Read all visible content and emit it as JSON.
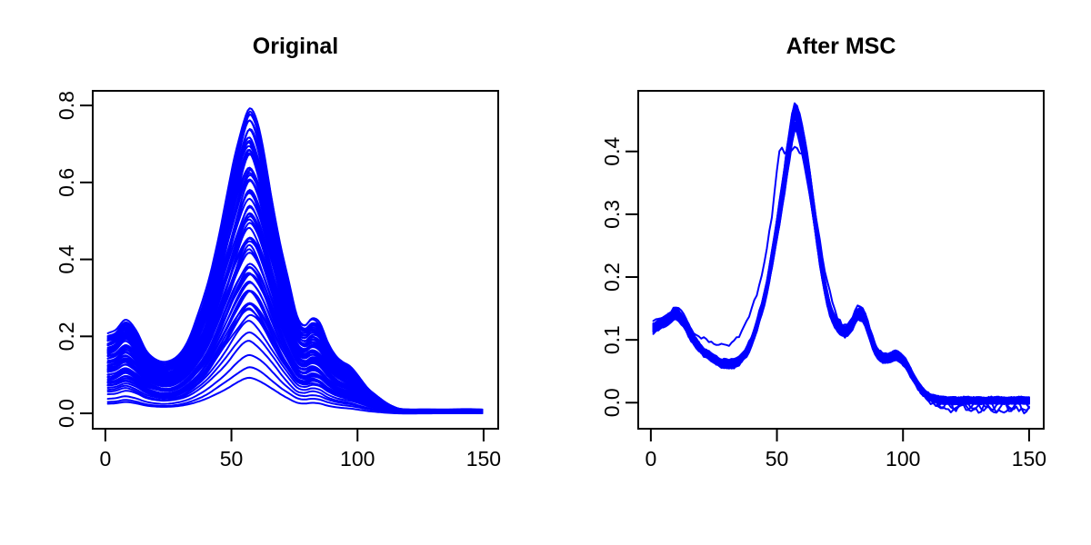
{
  "figure": {
    "background": "#ffffff",
    "axis_color": "#000000",
    "text_color": "#000000",
    "curve_color": "#0000ff"
  },
  "chart_data": [
    {
      "id": "original",
      "type": "line",
      "title": "Original",
      "xlabel": "",
      "ylabel": "",
      "line_color": "#0000ff",
      "grid": false,
      "legend": false,
      "x_ticks": [
        0,
        50,
        100,
        150
      ],
      "y_ticks": [
        0.0,
        0.2,
        0.4,
        0.6,
        0.8
      ],
      "y_tick_labels": [
        "0.0",
        "0.2",
        "0.4",
        "0.6",
        "0.8"
      ],
      "xlim": [
        -5.0,
        155.8
      ],
      "ylim": [
        -0.04,
        0.838
      ],
      "n_curves": 67,
      "description": "Ensemble of raw spectra with varying amplitude; small peak near x=8, main peak near x=57 (max 0.795), secondary bump near x=82, shoulder near x=94, tail near 0.01 beyond x=115",
      "base_curve": {
        "x": [
          1,
          4,
          8,
          12,
          16,
          20,
          24,
          28,
          32,
          36,
          40,
          44,
          48,
          52,
          55,
          57,
          59,
          62,
          66,
          70,
          73,
          76,
          79,
          82,
          85,
          88,
          91,
          94,
          97,
          100,
          104,
          108,
          112,
          116,
          120,
          128,
          136,
          144,
          150
        ],
        "y": [
          0.205,
          0.215,
          0.245,
          0.215,
          0.165,
          0.142,
          0.133,
          0.145,
          0.18,
          0.24,
          0.32,
          0.43,
          0.55,
          0.68,
          0.765,
          0.795,
          0.775,
          0.7,
          0.56,
          0.42,
          0.33,
          0.25,
          0.228,
          0.244,
          0.23,
          0.185,
          0.153,
          0.133,
          0.12,
          0.099,
          0.066,
          0.043,
          0.024,
          0.012,
          0.009,
          0.009,
          0.009,
          0.01,
          0.009
        ]
      },
      "ensemble": {
        "mode": "scaled",
        "n_scaled": 62,
        "scale_range": [
          0.31,
          1.0
        ],
        "low_scales": [
          0.115,
          0.15,
          0.19,
          0.235,
          0.27
        ],
        "scale_jitter": 0.012,
        "rel_noise": [
          0.012,
          0.009
        ],
        "abs_noise": 0.0015,
        "seed": 1234
      }
    },
    {
      "id": "after-msc",
      "type": "line",
      "title": "After MSC",
      "xlabel": "",
      "ylabel": "",
      "line_color": "#0000ff",
      "grid": false,
      "legend": false,
      "x_ticks": [
        0,
        50,
        100,
        150
      ],
      "y_ticks": [
        0.0,
        0.1,
        0.2,
        0.3,
        0.4
      ],
      "y_tick_labels": [
        "0.0",
        "0.1",
        "0.2",
        "0.3",
        "0.4"
      ],
      "xlim": [
        -5.0,
        155.8
      ],
      "ylim": [
        -0.0415,
        0.4965
      ],
      "n_curves": 53,
      "description": "Same spectra after multiplicative scatter correction; curves collapse onto one shape: start ~0.12, bump 0.148 near x=10, dip 0.063 near x=31, main peak 0.47 at x=57, bump 0.146 near x=82, shoulder ~0.078 near x=97, tail ~0 with a few noisy curves dipping below zero",
      "base_curve": {
        "x": [
          1,
          4,
          7,
          10,
          13,
          16,
          19,
          23,
          27,
          31,
          34,
          37,
          40,
          43,
          46,
          49,
          52,
          55,
          57,
          59,
          62,
          65,
          68,
          71,
          74,
          77,
          80,
          82,
          85,
          88,
          91,
          94,
          97,
          100,
          103,
          106,
          109,
          112,
          116,
          121,
          126,
          131,
          136,
          141,
          146,
          150
        ],
        "y": [
          0.124,
          0.132,
          0.14,
          0.148,
          0.134,
          0.112,
          0.092,
          0.077,
          0.067,
          0.063,
          0.066,
          0.078,
          0.102,
          0.14,
          0.19,
          0.26,
          0.34,
          0.425,
          0.47,
          0.455,
          0.39,
          0.3,
          0.215,
          0.155,
          0.128,
          0.118,
          0.13,
          0.146,
          0.138,
          0.098,
          0.077,
          0.073,
          0.078,
          0.07,
          0.05,
          0.028,
          0.014,
          0.007,
          0.004,
          0.003,
          0.004,
          0.003,
          0.004,
          0.003,
          0.004,
          0.003
        ]
      },
      "ensemble": {
        "mode": "clustered",
        "n_clustered": 52,
        "scale_range": [
          0.93,
          1.0
        ],
        "rel_noise": [
          0.012,
          0.008
        ],
        "abs_noise": 0.004,
        "point_jitter": 0.0022,
        "seed": 99
      },
      "outlier_curve": {
        "x": [
          1,
          5,
          10,
          15,
          20,
          25,
          30,
          35,
          40,
          44,
          48,
          51,
          53,
          55,
          57,
          60,
          63,
          66,
          70,
          74,
          78,
          82,
          86,
          90,
          94,
          98,
          102,
          106,
          110,
          114,
          118,
          123,
          128,
          133,
          138,
          143,
          148,
          150
        ],
        "y": [
          0.115,
          0.126,
          0.142,
          0.12,
          0.104,
          0.096,
          0.094,
          0.106,
          0.148,
          0.205,
          0.3,
          0.405,
          0.392,
          0.398,
          0.4,
          0.395,
          0.352,
          0.28,
          0.19,
          0.138,
          0.115,
          0.138,
          0.12,
          0.085,
          0.072,
          0.075,
          0.06,
          0.03,
          0.005,
          -0.008,
          -0.012,
          -0.006,
          -0.014,
          -0.008,
          -0.015,
          -0.01,
          -0.012,
          -0.01
        ],
        "point_jitter": 0.0045
      },
      "tail_wiggles": [
        {
          "start_x": 103,
          "offset": -0.011,
          "amp": 0.008,
          "period": 5.5
        },
        {
          "start_x": 108,
          "offset": -0.007,
          "amp": 0.006,
          "period": 7.5
        }
      ]
    }
  ]
}
